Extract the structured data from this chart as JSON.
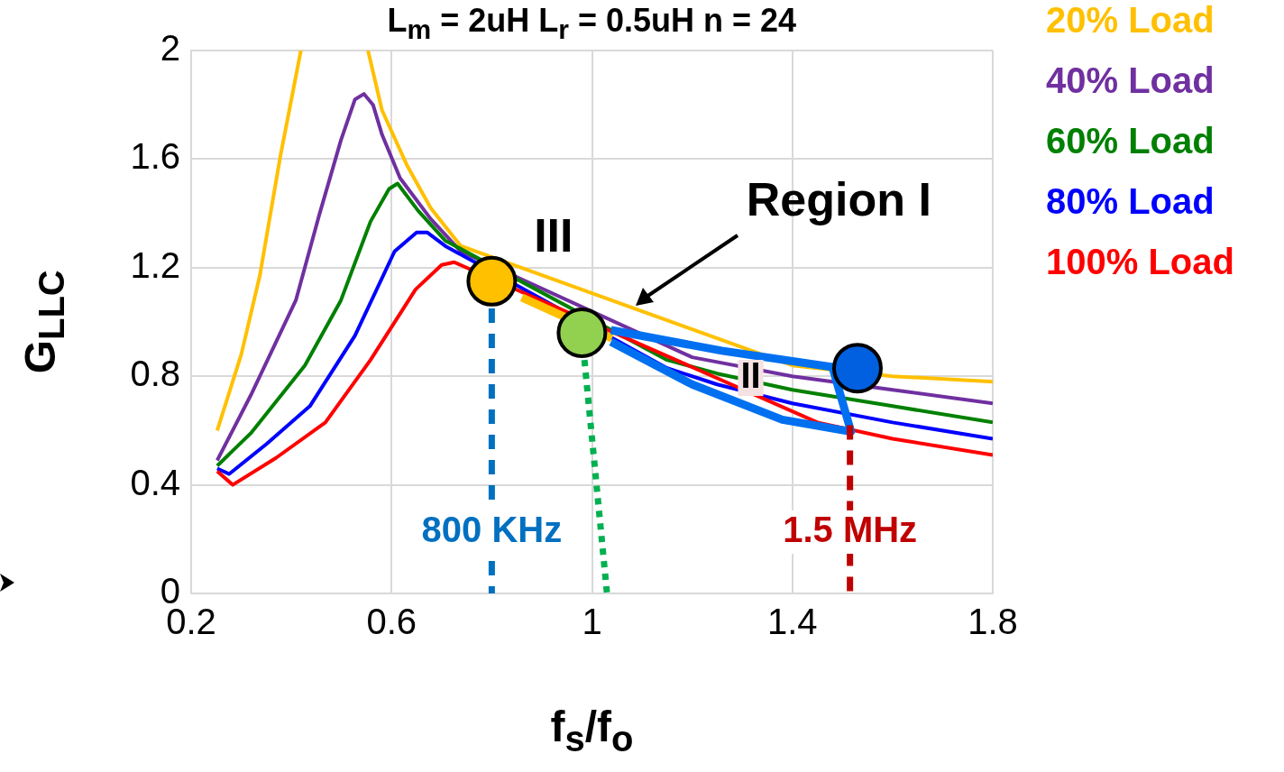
{
  "chart_data": {
    "type": "line",
    "title": "L$_{m}$ = 2uH L$_{r}$ = 0.5uH n = 24",
    "xlabel": "f$_{s}$/f$_{o}$",
    "ylabel": "G$_{LLC}$",
    "xlim": [
      0.2,
      1.8
    ],
    "xticks": [
      0.2,
      0.6,
      1,
      1.4,
      1.8
    ],
    "ylim": [
      0,
      2
    ],
    "yticks": [
      0,
      0.4,
      0.8,
      1.2,
      1.6,
      2
    ],
    "grid": true,
    "legend": "right",
    "series": [
      {
        "name": "20% Load",
        "color": "#ffc000",
        "x": [
          0.252,
          0.3,
          0.337,
          0.378,
          0.419,
          0.486,
          0.553,
          0.581,
          0.63,
          0.678,
          0.738,
          1.4,
          1.6,
          1.8
        ],
        "values": [
          0.6,
          0.88,
          1.17,
          1.61,
          2.0,
          null,
          2.0,
          1.78,
          1.58,
          1.42,
          1.28,
          0.84,
          0.8,
          0.78
        ]
      },
      {
        "name": "40% Load",
        "color": "#7030a0",
        "x": [
          0.252,
          0.319,
          0.409,
          0.455,
          0.499,
          0.527,
          0.545,
          0.563,
          0.581,
          0.617,
          0.678,
          0.738,
          1.2,
          1.4,
          1.6,
          1.8
        ],
        "values": [
          0.49,
          0.73,
          1.08,
          1.39,
          1.67,
          1.82,
          1.84,
          1.8,
          1.69,
          1.53,
          1.38,
          1.26,
          0.87,
          0.8,
          0.75,
          0.7
        ]
      },
      {
        "name": "60% Load",
        "color": "#008000",
        "x": [
          0.252,
          0.319,
          0.427,
          0.499,
          0.558,
          0.595,
          0.612,
          0.653,
          0.707,
          1.15,
          1.25,
          1.4,
          1.6,
          1.8
        ],
        "values": [
          0.47,
          0.59,
          0.84,
          1.08,
          1.37,
          1.49,
          1.51,
          1.41,
          1.3,
          0.86,
          0.81,
          0.75,
          0.69,
          0.63
        ]
      },
      {
        "name": "80% Load",
        "color": "#0000ff",
        "x": [
          0.252,
          0.276,
          0.35,
          0.437,
          0.527,
          0.606,
          0.65,
          0.671,
          0.707,
          1.15,
          1.25,
          1.4,
          1.6,
          1.8
        ],
        "values": [
          0.46,
          0.44,
          0.55,
          0.69,
          0.95,
          1.26,
          1.33,
          1.33,
          1.28,
          0.83,
          0.77,
          0.7,
          0.63,
          0.57
        ]
      },
      {
        "name": "100% Load",
        "color": "#ff0000",
        "x": [
          0.252,
          0.283,
          0.37,
          0.468,
          0.558,
          0.648,
          0.7,
          0.725,
          1.45,
          1.6,
          1.8
        ],
        "values": [
          0.45,
          0.4,
          0.5,
          0.63,
          0.86,
          1.12,
          1.21,
          1.22,
          0.63,
          0.57,
          0.51
        ]
      },
      {
        "color": "#ffc000",
        "x": [
          0.86,
          1.04
        ],
        "values": [
          1.09,
          0.94
        ]
      },
      {
        "color": "#0070f0",
        "x": [
          1.038,
          1.259,
          1.48,
          1.517,
          1.38,
          1.2,
          1.038
        ],
        "values": [
          0.97,
          0.894,
          0.834,
          0.596,
          0.64,
          0.77,
          0.927
        ]
      },
      {
        "name": "800 KHz",
        "color": "#0070c0",
        "line_style": "dashed",
        "x": [
          0.8,
          0.8
        ],
        "values": [
          1.05,
          0
        ]
      },
      {
        "name": "1.5 MHz",
        "color": "#c00000",
        "line_style": "dashed",
        "x": [
          1.515,
          1.515
        ],
        "values": [
          0.62,
          0
        ]
      },
      {
        "color": "#00b050",
        "line_style": "dotted",
        "x": [
          0.985,
          1.03
        ],
        "values": [
          0.86,
          0
        ]
      },
      {
        "type": "scatter",
        "marker": "circle",
        "color": "#ffc000",
        "x": [
          0.8
        ],
        "values": [
          1.15
        ]
      },
      {
        "type": "scatter",
        "marker": "circle",
        "color": "#92d050",
        "x": [
          0.98
        ],
        "values": [
          0.96
        ]
      },
      {
        "type": "scatter",
        "marker": "circle",
        "color": "#0060e0",
        "x": [
          1.53
        ],
        "values": [
          0.83
        ]
      }
    ],
    "annotations": [
      "III",
      "II",
      "Region I"
    ]
  }
}
